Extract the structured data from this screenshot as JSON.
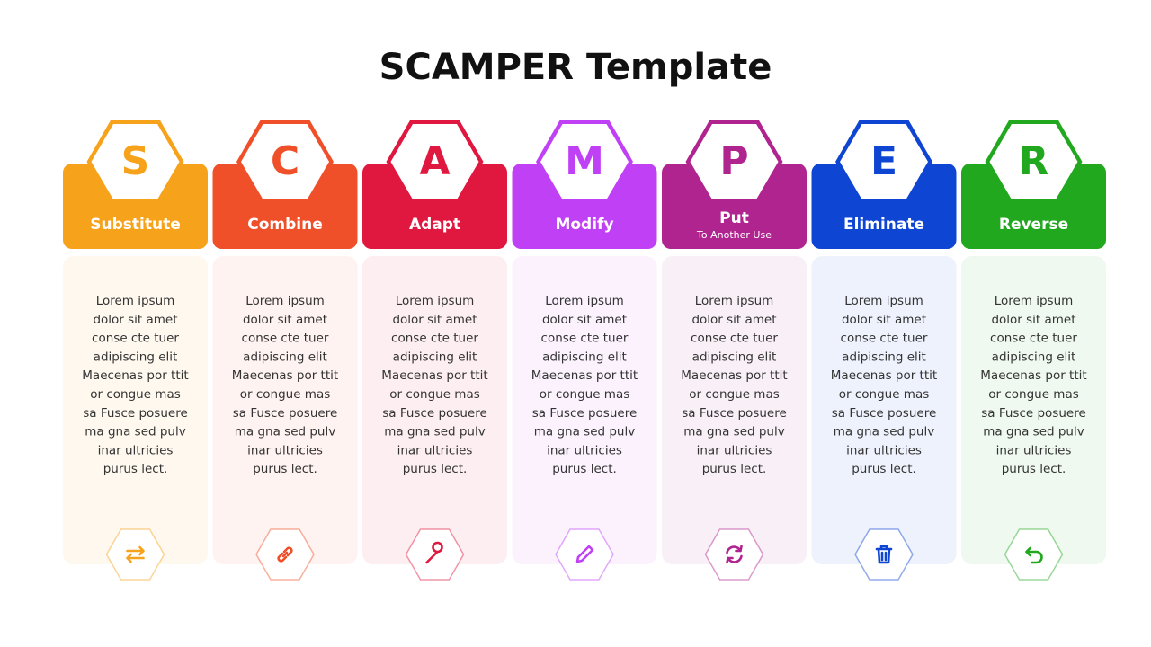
{
  "header": {
    "title": "SCAMPER Template"
  },
  "columns": [
    {
      "letter": "S",
      "label": "Substitute",
      "color": "#f7a21b",
      "body": [
        "Lorem ipsum",
        "dolor sit amet",
        "conse cte tuer",
        "adipiscing elit",
        "Maecenas por ttit",
        "or congue mas",
        "sa Fusce posuere",
        "ma gna sed pulv",
        "inar ultricies",
        "purus lect."
      ]
    },
    {
      "letter": "C",
      "label": "Combine",
      "color": "#ef5029",
      "body": [
        "Lorem ipsum",
        "dolor sit amet",
        "conse cte tuer",
        "adipiscing elit",
        "Maecenas por ttit",
        "or congue mas",
        "sa Fusce posuere",
        "ma gna sed pulv",
        "inar ultricies",
        "purus lect."
      ]
    },
    {
      "letter": "A",
      "label": "Adapt",
      "color": "#e0173f",
      "body": [
        "Lorem ipsum",
        "dolor sit amet",
        "conse cte tuer",
        "adipiscing elit",
        "Maecenas por ttit",
        "or congue mas",
        "sa Fusce posuere",
        "ma gna sed pulv",
        "inar ultricies",
        "purus lect."
      ]
    },
    {
      "letter": "M",
      "label": "Modify",
      "color": "#c040f5",
      "body": [
        "Lorem ipsum",
        "dolor sit amet",
        "conse cte tuer",
        "adipiscing elit",
        "Maecenas por ttit",
        "or congue mas",
        "sa Fusce posuere",
        "ma gna sed pulv",
        "inar ultricies",
        "purus lect."
      ]
    },
    {
      "letter": "P",
      "label": "Put",
      "sublabel": "To Another Use",
      "color": "#b0248f",
      "body": [
        "Lorem ipsum",
        "dolor sit amet",
        "conse cte tuer",
        "adipiscing elit",
        "Maecenas por ttit",
        "or congue mas",
        "sa Fusce posuere",
        "ma gna sed pulv",
        "inar ultricies",
        "purus lect."
      ]
    },
    {
      "letter": "E",
      "label": "Eliminate",
      "color": "#0f45d3",
      "body": [
        "Lorem ipsum",
        "dolor sit amet",
        "conse cte tuer",
        "adipiscing elit",
        "Maecenas por ttit",
        "or congue mas",
        "sa Fusce posuere",
        "ma gna sed pulv",
        "inar ultricies",
        "purus lect."
      ]
    },
    {
      "letter": "R",
      "label": "Reverse",
      "color": "#21a81f",
      "body": [
        "Lorem ipsum",
        "dolor sit amet",
        "conse cte tuer",
        "adipiscing elit",
        "Maecenas por ttit",
        "or congue mas",
        "sa Fusce posuere",
        "ma gna sed pulv",
        "inar ultricies",
        "purus lect."
      ]
    }
  ]
}
